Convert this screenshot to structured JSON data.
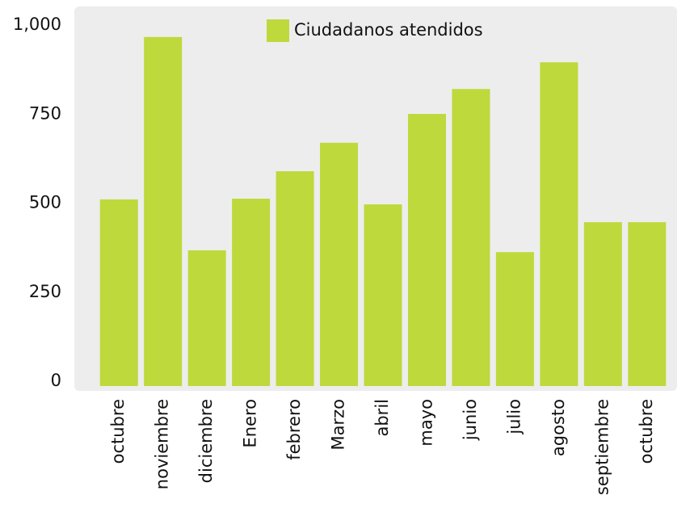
{
  "chart_data": {
    "type": "bar",
    "categories": [
      "octubre",
      "noviembre",
      "diciembre",
      "Enero",
      "febrero",
      "Marzo",
      "abril",
      "mayo",
      "junio",
      "julio",
      "agosto",
      "septiembre",
      "octubre"
    ],
    "series": [
      {
        "name": "Ciudadanos atendidos",
        "color": "#bdd93c",
        "values": [
          524,
          980,
          381,
          526,
          603,
          683,
          510,
          764,
          834,
          376,
          909,
          460,
          460
        ]
      }
    ],
    "ylim": [
      0,
      1000
    ],
    "yticks": [
      0,
      250,
      500,
      {
        "value": 1000,
        "label": "1,000"
      },
      750
    ],
    "legend": "top"
  }
}
